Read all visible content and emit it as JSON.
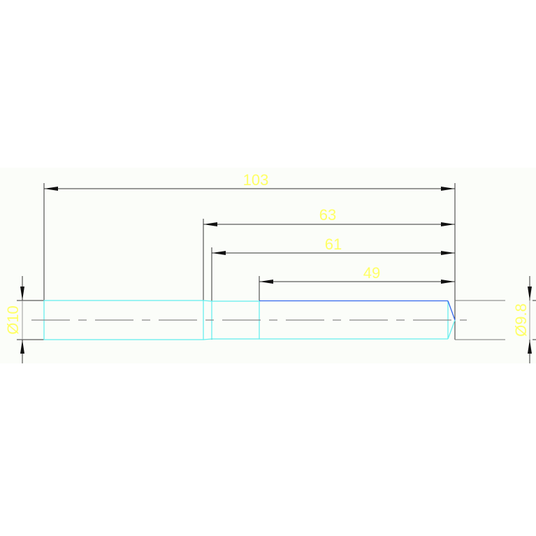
{
  "drawing": {
    "dimensions": {
      "overall": "103",
      "d63": "63",
      "d61": "61",
      "d49": "49",
      "left_diameter": "Ø10",
      "right_diameter": "Ø9.8"
    },
    "colors": {
      "dimension_text": "#ffff66",
      "part_outline": "#66eeee",
      "part_edge_blue": "#3366ee",
      "dimension_line": "#222222",
      "centerline": "#888888",
      "background_band": "#fbfdf9"
    }
  }
}
